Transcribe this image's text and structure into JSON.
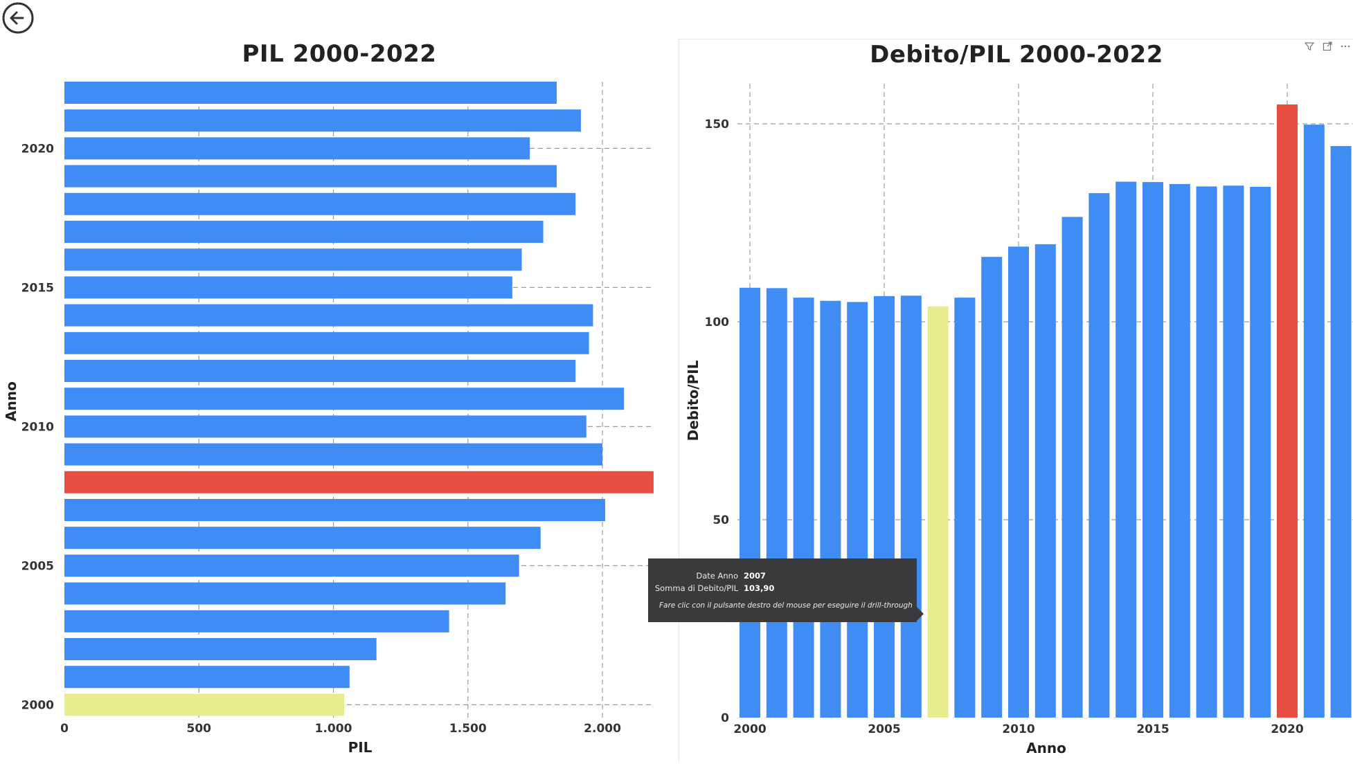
{
  "header": {
    "back_icon": "back-arrow-icon"
  },
  "toolbar_icons": [
    "filter-icon",
    "focus-mode-icon",
    "more-options-icon"
  ],
  "colors": {
    "default": "#3f8cf5",
    "highlight_max": "#e64e42",
    "selected": "#e8ec8e"
  },
  "tooltip": {
    "rows": [
      {
        "label": "Date Anno",
        "value": "2007"
      },
      {
        "label": "Somma di Debito/PIL",
        "value": "103,90"
      }
    ],
    "hint": "Fare clic con il pulsante destro del mouse per eseguire il drill-through"
  },
  "chart_data": [
    {
      "type": "bar",
      "orientation": "horizontal",
      "title": "PIL 2000-2022",
      "xlabel": "PIL",
      "ylabel": "Anno",
      "xlim": [
        0,
        2200
      ],
      "x_ticks": [
        {
          "value": 0,
          "label": "0"
        },
        {
          "value": 500,
          "label": "500"
        },
        {
          "value": 1000,
          "label": "1.000"
        },
        {
          "value": 1500,
          "label": "1.500"
        },
        {
          "value": 2000,
          "label": "2.000"
        }
      ],
      "y_ticks": [
        2000,
        2005,
        2010,
        2015,
        2020
      ],
      "grid": true,
      "categories": [
        2000,
        2001,
        2002,
        2003,
        2004,
        2005,
        2006,
        2007,
        2008,
        2009,
        2010,
        2011,
        2012,
        2013,
        2014,
        2015,
        2016,
        2017,
        2018,
        2019,
        2020,
        2021,
        2022
      ],
      "values": [
        1040,
        1060,
        1160,
        1430,
        1640,
        1690,
        1770,
        2010,
        2190,
        2000,
        1940,
        2080,
        1900,
        1950,
        1965,
        1665,
        1700,
        1780,
        1900,
        1830,
        1730,
        1920,
        1830
      ],
      "bar_colors": [
        "selected",
        "default",
        "default",
        "default",
        "default",
        "default",
        "default",
        "default",
        "highlight_max",
        "default",
        "default",
        "default",
        "default",
        "default",
        "default",
        "default",
        "default",
        "default",
        "default",
        "default",
        "default",
        "default",
        "default"
      ]
    },
    {
      "type": "bar",
      "orientation": "vertical",
      "title": "Debito/PIL 2000-2022",
      "xlabel": "Anno",
      "ylabel": "Debito/PIL",
      "ylim": [
        0,
        160
      ],
      "y_ticks": [
        {
          "value": 0,
          "label": "0"
        },
        {
          "value": 50,
          "label": "50"
        },
        {
          "value": 100,
          "label": "100"
        },
        {
          "value": 150,
          "label": "150"
        }
      ],
      "x_ticks": [
        2000,
        2005,
        2010,
        2015,
        2020
      ],
      "grid": true,
      "categories": [
        2000,
        2001,
        2002,
        2003,
        2004,
        2005,
        2006,
        2007,
        2008,
        2009,
        2010,
        2011,
        2012,
        2013,
        2014,
        2015,
        2016,
        2017,
        2018,
        2019,
        2020,
        2021,
        2022
      ],
      "values": [
        108.6,
        108.5,
        106.1,
        105.3,
        105.0,
        106.5,
        106.6,
        103.9,
        106.1,
        116.4,
        119.0,
        119.6,
        126.5,
        132.5,
        135.4,
        135.3,
        134.8,
        134.2,
        134.4,
        134.1,
        154.9,
        149.8,
        144.4
      ],
      "bar_colors": [
        "default",
        "default",
        "default",
        "default",
        "default",
        "default",
        "default",
        "selected",
        "default",
        "default",
        "default",
        "default",
        "default",
        "default",
        "default",
        "default",
        "default",
        "default",
        "default",
        "default",
        "highlight_max",
        "default",
        "default"
      ]
    }
  ]
}
